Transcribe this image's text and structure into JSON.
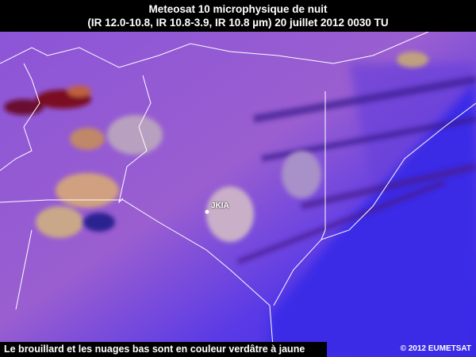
{
  "header": {
    "title_line1": "Meteosat 10 microphysique de nuit",
    "title_line2": "(IR 12.0-10.8, IR 10.8-3.9, IR 10.8 µm) 20 juillet 2012 0030 TU"
  },
  "map": {
    "marker_label": "JKIA",
    "colors": {
      "land": "#8a4fd6",
      "ocean": "#3a2fe0",
      "low_cloud": "#c9a88a",
      "high_cloud": "#7a1020",
      "border": "#ffffff"
    }
  },
  "footer": {
    "caption": "Le brouillard et les nuages bas sont en couleur verdâtre à jaune",
    "copyright": "© 2012 EUMETSAT"
  }
}
